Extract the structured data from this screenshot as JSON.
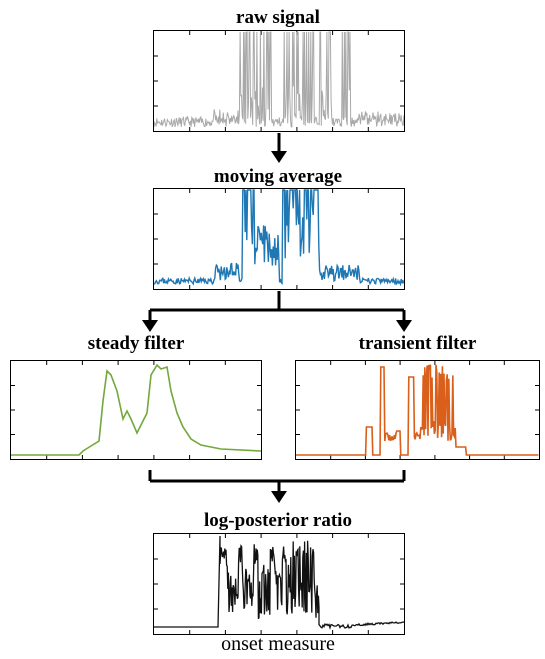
{
  "panels": {
    "raw": {
      "title": "raw signal",
      "color": "#a9a9a9"
    },
    "moving": {
      "title": "moving average",
      "color": "#1f77b4"
    },
    "steady": {
      "title": "steady filter",
      "color": "#72a83c"
    },
    "transient": {
      "title": "transient filter",
      "color": "#d95f1a"
    },
    "ratio": {
      "title": "log-posterior ratio",
      "color": "#111111",
      "caption": "onset measure"
    }
  }
}
